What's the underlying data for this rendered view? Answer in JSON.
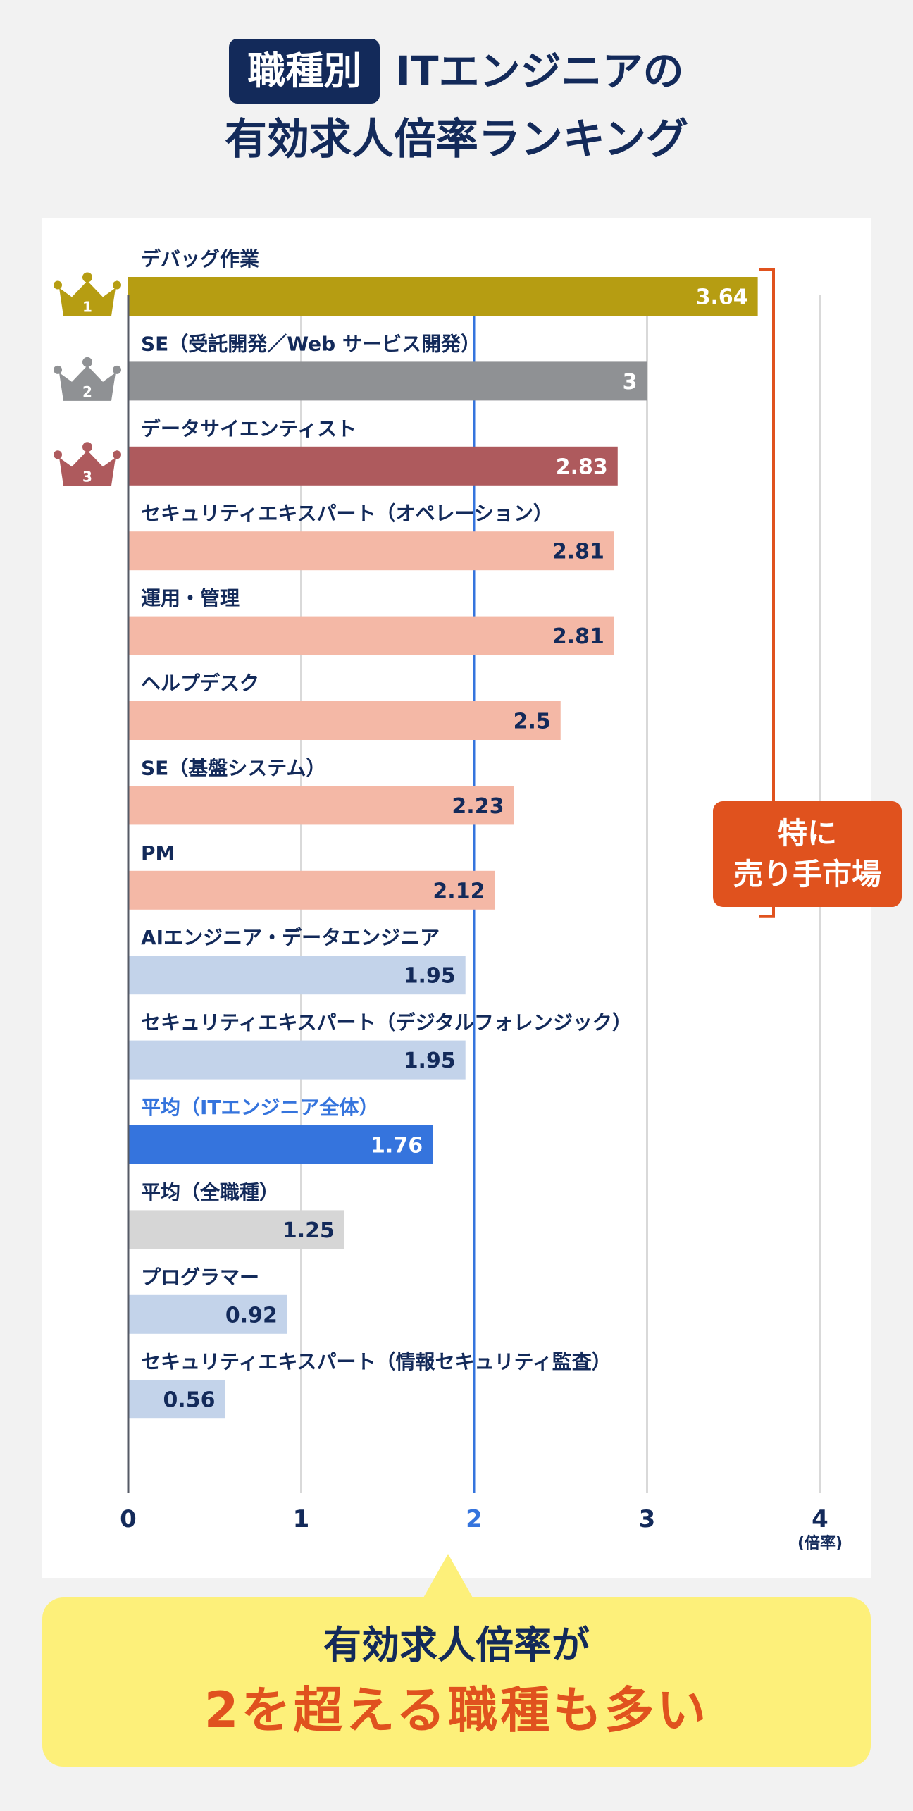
{
  "header": {
    "badge": "職種別",
    "title_line1": "ITエンジニアの",
    "title_line2": "有効求人倍率ランキング"
  },
  "callout": {
    "line1": "特に",
    "line2": "売り手市場"
  },
  "bottom": {
    "line1": "有効求人倍率が",
    "line2": "2を超える職種も多い"
  },
  "colors": {
    "gold": "#b69d12",
    "silver": "#8f9194",
    "bronze": "#ae5a5d",
    "salmon": "#f4b8a6",
    "light_blue": "#c3d3ea",
    "blue": "#3574dd",
    "gray": "#d6d6d6",
    "orange": "#e0521e",
    "navy": "#132a5a"
  },
  "chart_data": {
    "type": "bar",
    "orientation": "horizontal",
    "unit": "(倍率)",
    "xlim": [
      0,
      4
    ],
    "x_ticks": [
      "0",
      "1",
      "2",
      "3",
      "4"
    ],
    "highlight_tick": "2",
    "categories": [
      "デバッグ作業",
      "SE（受託開発／Web サービス開発）",
      "データサイエンティスト",
      "セキュリティエキスパート（オペレーション）",
      "運用・管理",
      "ヘルプデスク",
      "SE（基盤システム）",
      "PM",
      "AIエンジニア・データエンジニア",
      "セキュリティエキスパート（デジタルフォレンジック）",
      "平均（ITエンジニア全体）",
      "平均（全職種）",
      "プログラマー",
      "セキュリティエキスパート（情報セキュリティ監査）"
    ],
    "values": [
      3.64,
      3,
      2.83,
      2.81,
      2.81,
      2.5,
      2.23,
      2.12,
      1.95,
      1.95,
      1.76,
      1.25,
      0.92,
      0.56
    ],
    "value_labels": [
      "3.64",
      "3",
      "2.83",
      "2.81",
      "2.81",
      "2.5",
      "2.23",
      "2.12",
      "1.95",
      "1.95",
      "1.76",
      "1.25",
      "0.92",
      "0.56"
    ],
    "bar_colors": [
      "gold",
      "silver",
      "bronze",
      "salmon",
      "salmon",
      "salmon",
      "salmon",
      "salmon",
      "light_blue",
      "light_blue",
      "blue",
      "gray",
      "light_blue",
      "light_blue"
    ],
    "label_colors": [
      "navy",
      "navy",
      "navy",
      "navy",
      "navy",
      "navy",
      "navy",
      "navy",
      "navy",
      "navy",
      "blue",
      "navy",
      "navy",
      "navy"
    ],
    "rank_badges": [
      {
        "rank": "1",
        "color": "gold"
      },
      {
        "rank": "2",
        "color": "silver"
      },
      {
        "rank": "3",
        "color": "bronze"
      }
    ]
  }
}
